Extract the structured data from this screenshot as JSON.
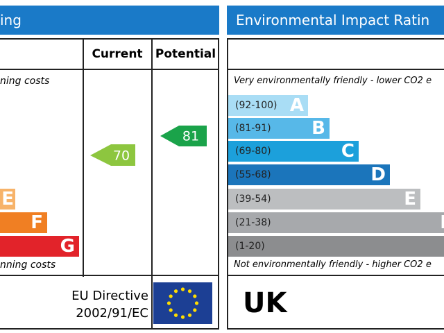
{
  "left_panel": {
    "title": "ing",
    "header": {
      "current": "Current",
      "potential": "Potential"
    },
    "top_note": "ning costs",
    "bottom_note": "nning costs",
    "bands": [
      {
        "letter": "E"
      },
      {
        "letter": "F"
      },
      {
        "letter": "G"
      }
    ],
    "current_rating": "70",
    "potential_rating": "81",
    "directive": {
      "line1": "EU Directive",
      "line2": "2002/91/EC"
    }
  },
  "right_panel": {
    "title": "Environmental Impact Ratin",
    "top_note": "Very environmentally friendly - lower CO2 e",
    "bottom_note": "Not environmentally friendly - higher CO2 e",
    "bands": [
      {
        "range": "(92-100)",
        "letter": "A"
      },
      {
        "range": "(81-91)",
        "letter": "B"
      },
      {
        "range": "(69-80)",
        "letter": "C"
      },
      {
        "range": "(55-68)",
        "letter": "D"
      },
      {
        "range": "(39-54)",
        "letter": "E"
      },
      {
        "range": "(21-38)",
        "letter": "F"
      },
      {
        "range": "(1-20)"
      }
    ],
    "country": "UK"
  }
}
